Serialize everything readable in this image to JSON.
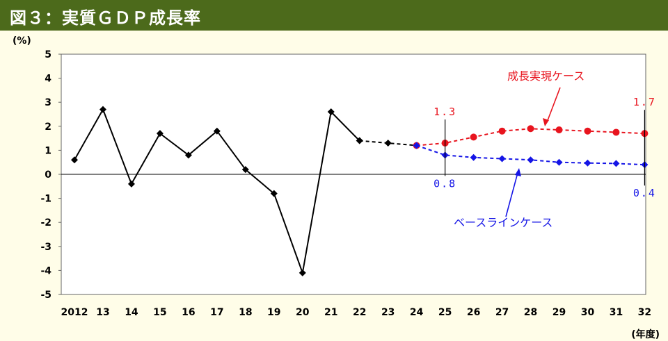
{
  "title": "図３：実質ＧＤＰ成長率",
  "colors": {
    "header_bg": "#4c6a1b",
    "page_bg": "#fffde8",
    "actual": "#000000",
    "growth": "#e8141e",
    "baseline": "#1515e6"
  },
  "chart_data": {
    "type": "line",
    "ylabel": "(%)",
    "xlabel": "(年度)",
    "ylim": [
      -5,
      5
    ],
    "yticks": [
      "5",
      "4",
      "3",
      "2",
      "1",
      "0",
      "-1",
      "-2",
      "-3",
      "-4",
      "-5"
    ],
    "x": [
      "2012",
      "13",
      "14",
      "15",
      "16",
      "17",
      "18",
      "19",
      "20",
      "21",
      "22",
      "23",
      "24",
      "25",
      "26",
      "27",
      "28",
      "29",
      "30",
      "31",
      "32"
    ],
    "grid": false,
    "series": [
      {
        "key": "actual",
        "x": [
          "2012",
          "13",
          "14",
          "15",
          "16",
          "17",
          "18",
          "19",
          "20",
          "21",
          "22"
        ],
        "values": [
          0.6,
          2.7,
          -0.4,
          1.7,
          0.8,
          1.8,
          0.2,
          -0.8,
          -4.1,
          2.6,
          1.4
        ],
        "style": "solid",
        "marker": "diamond",
        "color": "#000000"
      },
      {
        "key": "bridge",
        "x": [
          "22",
          "23",
          "24"
        ],
        "values": [
          1.4,
          1.3,
          1.2
        ],
        "style": "dashed",
        "marker": "diamond",
        "color": "#000000"
      },
      {
        "key": "growth",
        "name": "成長実現ケース",
        "x": [
          "24",
          "25",
          "26",
          "27",
          "28",
          "29",
          "30",
          "31",
          "32"
        ],
        "values": [
          1.2,
          1.3,
          1.55,
          1.8,
          1.9,
          1.85,
          1.8,
          1.75,
          1.7
        ],
        "style": "dashed",
        "marker": "circle",
        "color": "#e8141e"
      },
      {
        "key": "baseline",
        "name": "ベースラインケース",
        "x": [
          "24",
          "25",
          "26",
          "27",
          "28",
          "29",
          "30",
          "31",
          "32"
        ],
        "values": [
          1.2,
          0.8,
          0.7,
          0.65,
          0.6,
          0.5,
          0.47,
          0.45,
          0.4
        ],
        "style": "dashed",
        "marker": "diamond",
        "color": "#1515e6"
      }
    ],
    "annotations": [
      {
        "text": "1.3",
        "series": "growth",
        "x": "25"
      },
      {
        "text": "1.7",
        "series": "growth",
        "x": "32"
      },
      {
        "text": "0.8",
        "series": "baseline",
        "x": "25"
      },
      {
        "text": "0.4",
        "series": "baseline",
        "x": "32"
      }
    ]
  }
}
